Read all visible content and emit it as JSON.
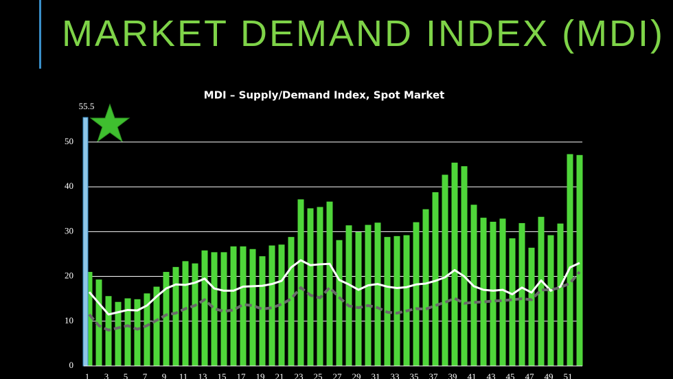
{
  "heading": "MARKET DEMAND INDEX (MDI)",
  "chart_data": {
    "type": "bar",
    "title": "MDI – Supply/Demand Index, Spot Market",
    "categories": [
      "1",
      null,
      "3",
      null,
      "5",
      null,
      "7",
      null,
      "9",
      null,
      "11",
      null,
      "13",
      null,
      "15",
      null,
      "17",
      null,
      "19",
      null,
      "21",
      null,
      "23",
      null,
      "25",
      null,
      "27",
      null,
      "29",
      null,
      "31",
      null,
      "33",
      null,
      "35",
      null,
      "37",
      null,
      "39",
      null,
      "41",
      null,
      "43",
      null,
      "45",
      null,
      "47",
      null,
      "49",
      null,
      "51",
      null
    ],
    "peak": {
      "value": 55.5,
      "color": "#8ec6e8"
    },
    "series": [
      {
        "type": "bar",
        "color": "#4fd63a",
        "values": [
          21,
          19.3,
          15.6,
          14.3,
          15.1,
          14.9,
          16.2,
          17.7,
          21,
          22.1,
          23.4,
          22.9,
          25.8,
          25.4,
          25.4,
          26.7,
          26.7,
          26.1,
          24.5,
          26.9,
          27.1,
          28.8,
          37.2,
          35.2,
          35.5,
          36.7,
          28.1,
          31.4,
          29.9,
          31.5,
          32,
          28.8,
          29,
          29.2,
          32.1,
          35,
          38.8,
          42.7,
          45.4,
          44.6,
          36,
          33.1,
          32.2,
          32.9,
          28.5,
          31.9,
          26.4,
          33.3,
          29.2,
          31.8,
          47.3,
          47.1
        ]
      },
      {
        "type": "line",
        "color": "#ffffff",
        "values": [
          16.5,
          14,
          11.5,
          12,
          12.5,
          12.4,
          13.5,
          15.5,
          17.3,
          18.2,
          18.1,
          18.6,
          19.5,
          17.3,
          16.8,
          16.8,
          17.7,
          17.8,
          17.9,
          18.3,
          19,
          22,
          23.6,
          22.5,
          22.7,
          22.8,
          19.2,
          18.2,
          17,
          18,
          18.3,
          17.7,
          17.4,
          17.6,
          18.2,
          18.4,
          19,
          19.8,
          21.4,
          20,
          17.8,
          17,
          16.8,
          17,
          16,
          17.5,
          16.4,
          19.1,
          16.8,
          17.7,
          22,
          23
        ]
      },
      {
        "type": "line",
        "dashed": true,
        "color": "#6a6a6a",
        "values": [
          11.5,
          9,
          8,
          8.5,
          9,
          8.2,
          9,
          10.2,
          11.4,
          11.8,
          12.8,
          13.5,
          14.8,
          12.8,
          12.2,
          12.5,
          13.7,
          13.5,
          12.7,
          13,
          13.8,
          15,
          17.5,
          15.8,
          15.2,
          17.5,
          15.3,
          13.4,
          13,
          13.5,
          13,
          12,
          11.8,
          12.3,
          12.8,
          12.7,
          13.5,
          14.2,
          15.1,
          14,
          14.2,
          14.3,
          14.5,
          14.6,
          14.8,
          15,
          14.8,
          17,
          17,
          17.5,
          18.5,
          21
        ]
      }
    ],
    "ylim": [
      0,
      55.5
    ],
    "yticks": [
      0,
      10,
      20,
      30,
      40,
      50
    ],
    "grid": true
  }
}
